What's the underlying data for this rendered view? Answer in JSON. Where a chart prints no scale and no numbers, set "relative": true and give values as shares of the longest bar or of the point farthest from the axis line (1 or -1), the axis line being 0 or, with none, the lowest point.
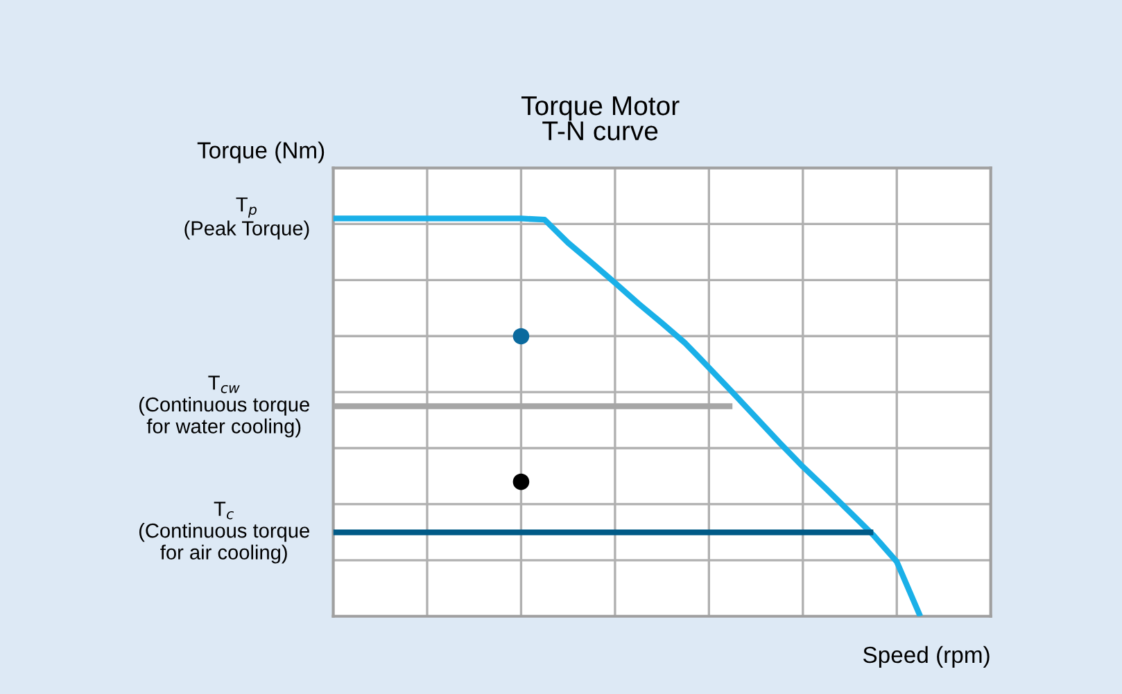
{
  "chart_data": {
    "type": "line",
    "title": "Torque Motor\nT-N curve",
    "xlabel": "Speed (rpm)",
    "ylabel": "Torque (Nm)",
    "relative": true,
    "categories": [
      null,
      null,
      null,
      null,
      null,
      null,
      null,
      null,
      null,
      null,
      null,
      null,
      null,
      null,
      null,
      null,
      null,
      null,
      null,
      null,
      null,
      null,
      null,
      null,
      null,
      null,
      null,
      null,
      null
    ],
    "annotations": [
      "T$_{p}$\n(Peak Torque)",
      "T$_{cw}$\n(Continuous torque\nfor water cooling)",
      "T$_{c}$\n(Continuous torque\nfor air cooling)"
    ],
    "grid": true,
    "line_style": "solid",
    "series": [
      {
        "color": "#1ab0e8",
        "values": [
          1,
          1,
          1,
          1,
          1,
          1,
          1,
          1,
          1,
          0.997,
          0.939,
          0.889,
          0.838,
          0.786,
          0.737,
          0.686,
          0.625,
          0.563,
          0.5,
          0.437,
          0.376,
          0.32,
          0.262,
          0.204,
          0.137,
          0,
          null,
          null,
          null
        ]
      },
      {
        "color": "#a6a6a6",
        "values": [
          0.528,
          0.528,
          0.528,
          0.528,
          0.528,
          0.528,
          0.528,
          0.528,
          0.528,
          0.528,
          0.528,
          0.528,
          0.528,
          0.528,
          0.528,
          0.528,
          0.528,
          0.528,
          null,
          null,
          null,
          null,
          null,
          null,
          null,
          null,
          null,
          null,
          null
        ]
      },
      {
        "color": "#005a87",
        "values": [
          0.211,
          0.211,
          0.211,
          0.211,
          0.211,
          0.211,
          0.211,
          0.211,
          0.211,
          0.211,
          0.211,
          0.211,
          0.211,
          0.211,
          0.211,
          0.211,
          0.211,
          0.211,
          0.211,
          0.211,
          0.211,
          0.211,
          0.211,
          0.211,
          null,
          null,
          null,
          null,
          null
        ]
      },
      {
        "color": "#0b6a9e",
        "marker": "circle",
        "values": [
          null,
          null,
          null,
          null,
          null,
          null,
          null,
          null,
          0.704,
          null,
          null,
          null,
          null,
          null,
          null,
          null,
          null,
          null,
          null,
          null,
          null,
          null,
          null,
          null,
          null,
          null,
          null,
          null,
          null
        ]
      },
      {
        "color": "#000000",
        "marker": "circle",
        "values": [
          null,
          null,
          null,
          null,
          null,
          null,
          null,
          null,
          0.338,
          null,
          null,
          null,
          null,
          null,
          null,
          null,
          null,
          null,
          null,
          null,
          null,
          null,
          null,
          null,
          null,
          null,
          null,
          null,
          null
        ]
      }
    ]
  }
}
